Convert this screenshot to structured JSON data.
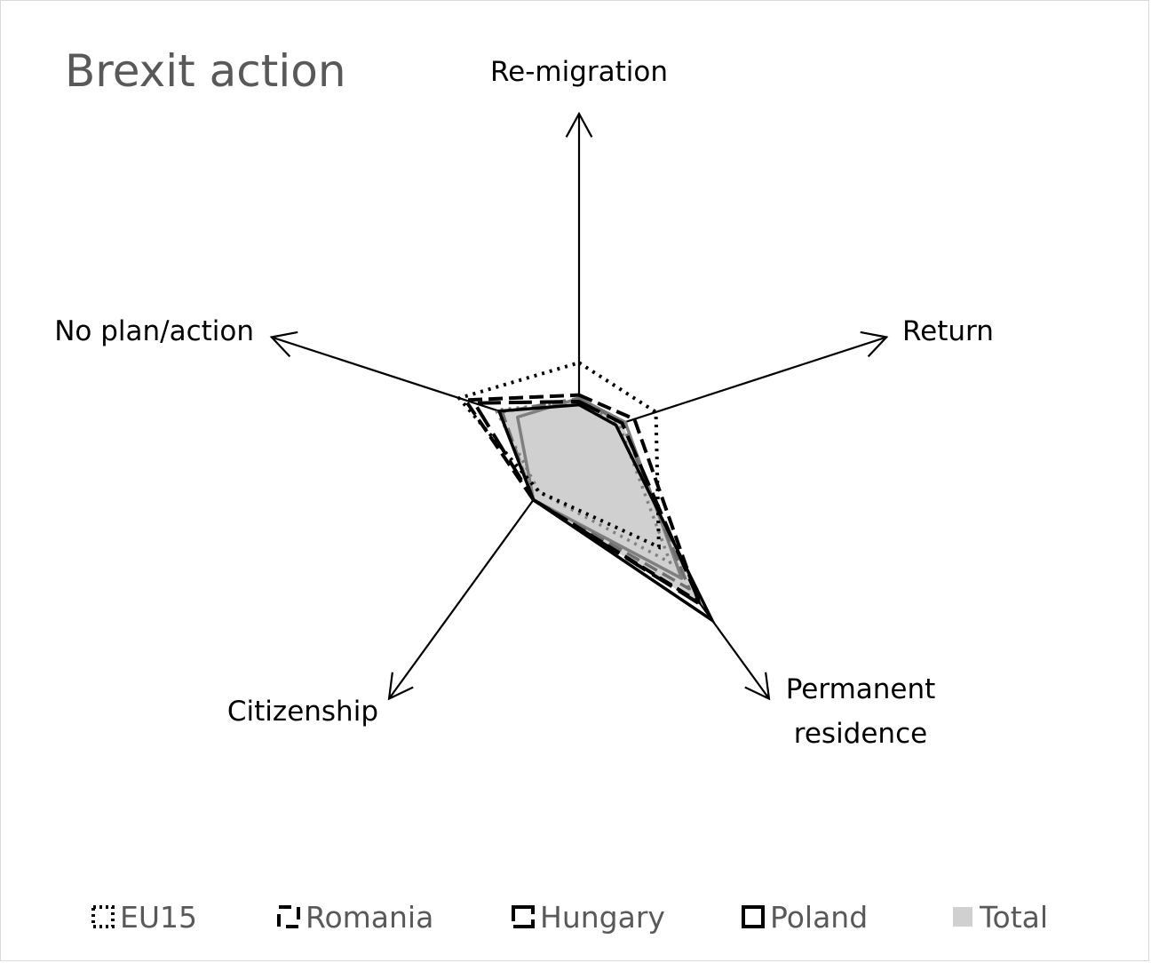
{
  "chart_data": {
    "type": "radar",
    "title": "Brexit action",
    "axes": [
      "Re-migration",
      "Return",
      "Permanent residence",
      "Citizenship",
      "No plan/action"
    ],
    "axis_label_lines": [
      [
        "Re-migration"
      ],
      [
        "Return"
      ],
      [
        "Permanent",
        "residence"
      ],
      [
        "Citizenship"
      ],
      [
        "No plan/action"
      ]
    ],
    "scale_max": 100,
    "series": [
      {
        "name": "EU15",
        "values": [
          23,
          25,
          42,
          21,
          39
        ],
        "style": "dotted",
        "color": "#000000"
      },
      {
        "name": "Romania",
        "values": [
          13,
          18,
          63,
          24,
          37
        ],
        "style": "dashed",
        "color": "#000000"
      },
      {
        "name": "Hungary",
        "values": [
          11,
          14,
          64,
          24,
          34
        ],
        "style": "longdash",
        "color": "#000000"
      },
      {
        "name": "Poland",
        "values": [
          10,
          12,
          70,
          24,
          26
        ],
        "style": "solid",
        "color": "#000000"
      },
      {
        "name": "Total",
        "values": [
          11,
          14,
          64,
          24,
          26
        ],
        "style": "fill",
        "color": "#d0d0d0"
      }
    ],
    "extra_lines": [
      {
        "values": [
          11,
          13,
          48,
          21,
          27
        ],
        "style": "dotted",
        "color": "#808080"
      },
      {
        "values": [
          12,
          15,
          54,
          24,
          20
        ],
        "style": "solid",
        "color": "#7f7f7f"
      },
      {
        "values": [
          12,
          14,
          58,
          24,
          25
        ],
        "style": "dashed",
        "color": "#6f6f6f"
      }
    ],
    "legend_position": "bottom"
  }
}
